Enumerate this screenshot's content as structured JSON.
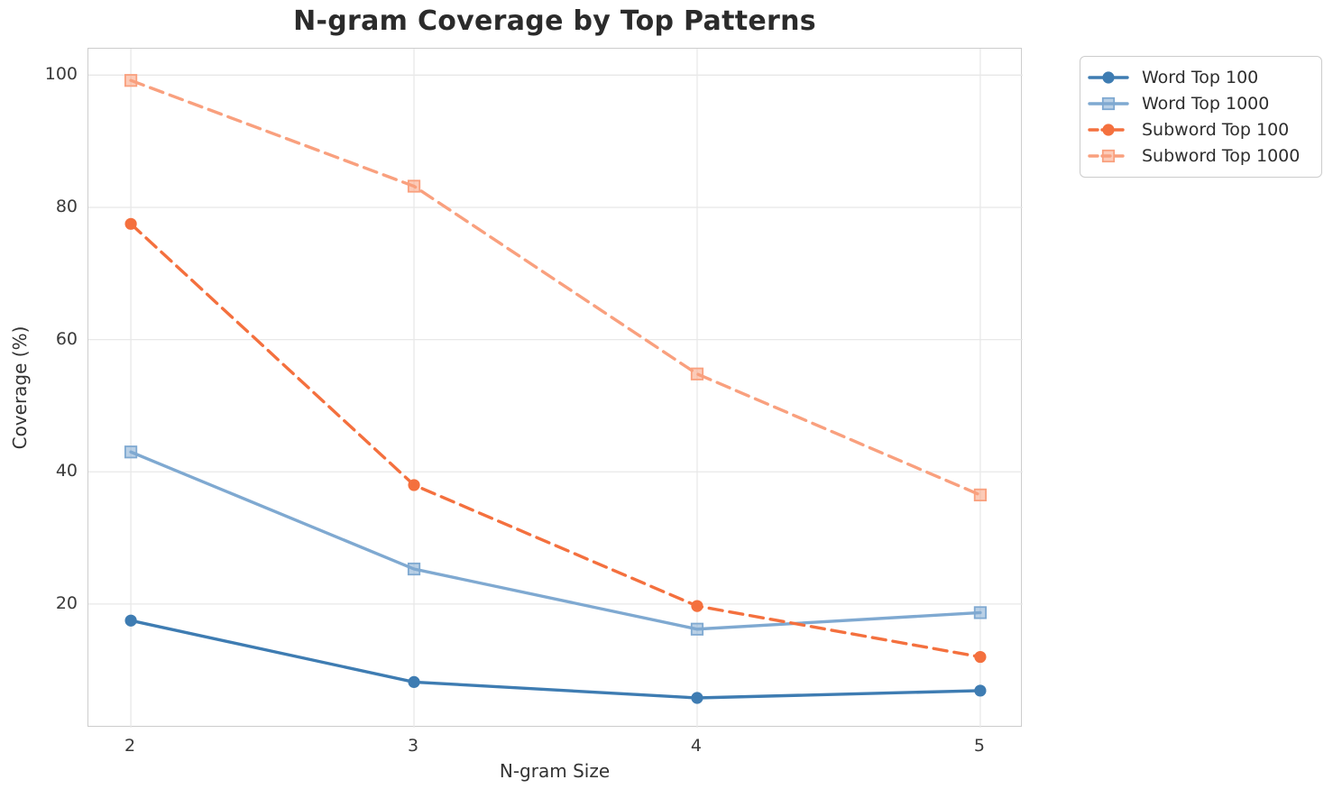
{
  "figure": {
    "title": "N-gram Coverage by Top Patterns"
  },
  "chart_data": {
    "type": "line",
    "title": "N-gram Coverage by Top Patterns",
    "xlabel": "N-gram Size",
    "ylabel": "Coverage (%)",
    "x": [
      2,
      3,
      4,
      5
    ],
    "xticks": [
      2,
      3,
      4,
      5
    ],
    "yticks": [
      20,
      40,
      60,
      80,
      100
    ],
    "xlim": [
      1.85,
      5.15
    ],
    "ylim": [
      1.3,
      104.0
    ],
    "grid": true,
    "legend_position": "outside-upper-right",
    "series": [
      {
        "name": "Word Top 100",
        "values": [
          17.5,
          8.2,
          5.8,
          6.9
        ],
        "color": "#3E7CB2",
        "marker": "circle",
        "line_style": "solid"
      },
      {
        "name": "Word Top 1000",
        "values": [
          43.0,
          25.3,
          16.2,
          18.7
        ],
        "color": "#7FA9D1",
        "marker": "square",
        "line_style": "solid"
      },
      {
        "name": "Subword Top 100",
        "values": [
          77.5,
          38.0,
          19.7,
          12.0
        ],
        "color": "#F4703E",
        "marker": "circle",
        "line_style": "dashed"
      },
      {
        "name": "Subword Top 1000",
        "values": [
          99.2,
          83.2,
          54.8,
          36.5
        ],
        "color": "#F9A07E",
        "marker": "square",
        "line_style": "dashed"
      }
    ]
  },
  "style_colors": {
    "grid": "#e8e8e8",
    "spine": "#cdcdcd",
    "title_text": "#2b2b2b",
    "tick_text": "#3a3a3a"
  }
}
